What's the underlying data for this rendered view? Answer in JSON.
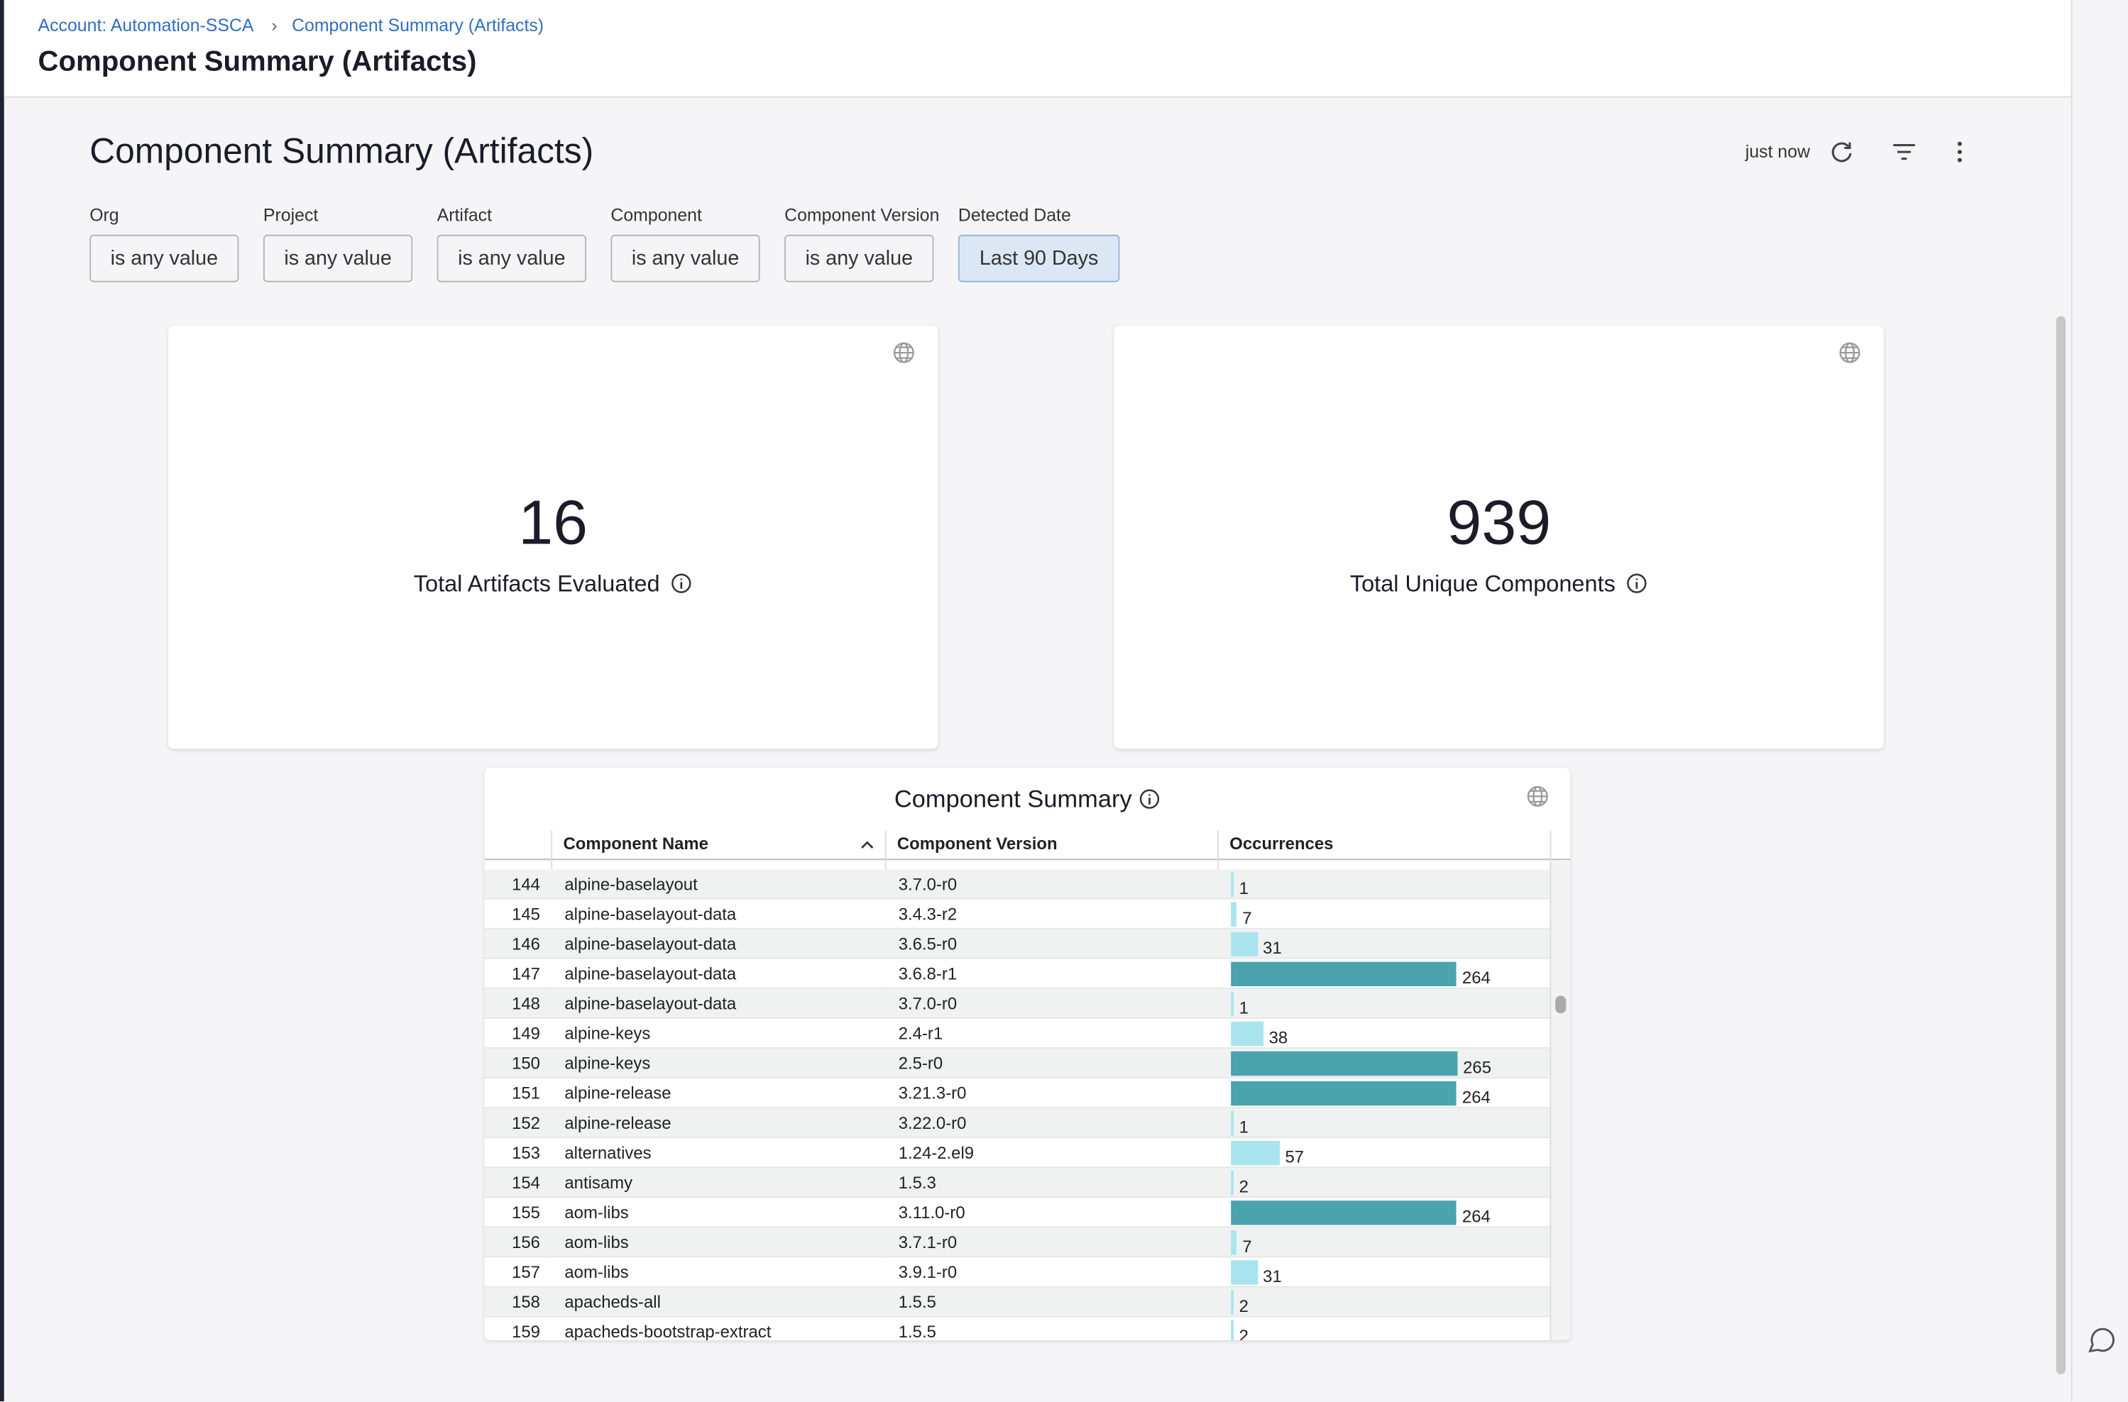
{
  "breadcrumb": [
    "Account: Automation-SSCA",
    "Component Summary (Artifacts)"
  ],
  "page_title": "Component Summary (Artifacts)",
  "dashboard": {
    "title": "Component Summary (Artifacts)",
    "last_updated": "just now",
    "filters": [
      {
        "label": "Org",
        "value": "is any value"
      },
      {
        "label": "Project",
        "value": "is any value"
      },
      {
        "label": "Artifact",
        "value": "is any value"
      },
      {
        "label": "Component",
        "value": "is any value"
      },
      {
        "label": "Component Version",
        "value": "is any value"
      },
      {
        "label": "Detected Date",
        "value": "Last 90 Days"
      }
    ],
    "tiles": [
      {
        "value": 16,
        "label": "Total Artifacts Evaluated"
      },
      {
        "value": 939,
        "label": "Total Unique Components"
      }
    ]
  },
  "table": {
    "title": "Component Summary",
    "columns": [
      "Component Name",
      "Component Version",
      "Occurrences"
    ],
    "bar_colors": [
      "#4aa3ad",
      "#a9e4ef"
    ],
    "rows": [
      [
        144,
        "alpine-baselayout",
        "3.7.0-r0",
        1
      ],
      [
        145,
        "alpine-baselayout-data",
        "3.4.3-r2",
        7
      ],
      [
        146,
        "alpine-baselayout-data",
        "3.6.5-r0",
        31
      ],
      [
        147,
        "alpine-baselayout-data",
        "3.6.8-r1",
        264
      ],
      [
        148,
        "alpine-baselayout-data",
        "3.7.0-r0",
        1
      ],
      [
        149,
        "alpine-keys",
        "2.4-r1",
        38
      ],
      [
        150,
        "alpine-keys",
        "2.5-r0",
        265
      ],
      [
        151,
        "alpine-release",
        "3.21.3-r0",
        264
      ],
      [
        152,
        "alpine-release",
        "3.22.0-r0",
        1
      ],
      [
        153,
        "alternatives",
        "1.24-2.el9",
        57
      ],
      [
        154,
        "antisamy",
        "1.5.3",
        2
      ],
      [
        155,
        "aom-libs",
        "3.11.0-r0",
        264
      ],
      [
        156,
        "aom-libs",
        "3.7.1-r0",
        7
      ],
      [
        157,
        "aom-libs",
        "3.9.1-r0",
        31
      ],
      [
        158,
        "apacheds-all",
        "1.5.5",
        2
      ],
      [
        159,
        "apacheds-bootstrap-extract",
        "1.5.5",
        2
      ]
    ]
  }
}
